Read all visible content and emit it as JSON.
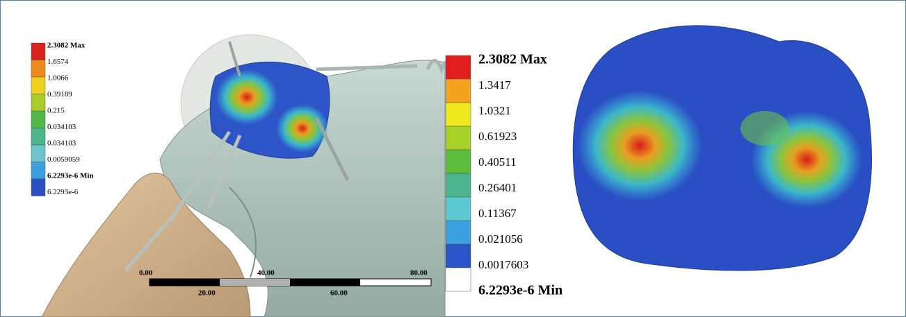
{
  "left_legend": {
    "labels": [
      "2.3082 Max",
      "1.6574",
      "1.0066",
      "0.39189",
      "0.215",
      "0.034103",
      "0.034103",
      "0.0059059",
      "6.2293e-6 Min",
      "6.2293e-6"
    ]
  },
  "scale_bar": {
    "top_labels": [
      "0.00",
      "40.00",
      "80.00"
    ],
    "bottom_labels": [
      "20.00",
      "60.00"
    ]
  },
  "right_legend": {
    "labels": [
      "2.3082 Max",
      "1.3417",
      "1.0321",
      "0.61923",
      "0.40511",
      "0.26401",
      "0.11367",
      "0.021056",
      "0.0017603",
      "6.2293e-6 Min"
    ]
  }
}
